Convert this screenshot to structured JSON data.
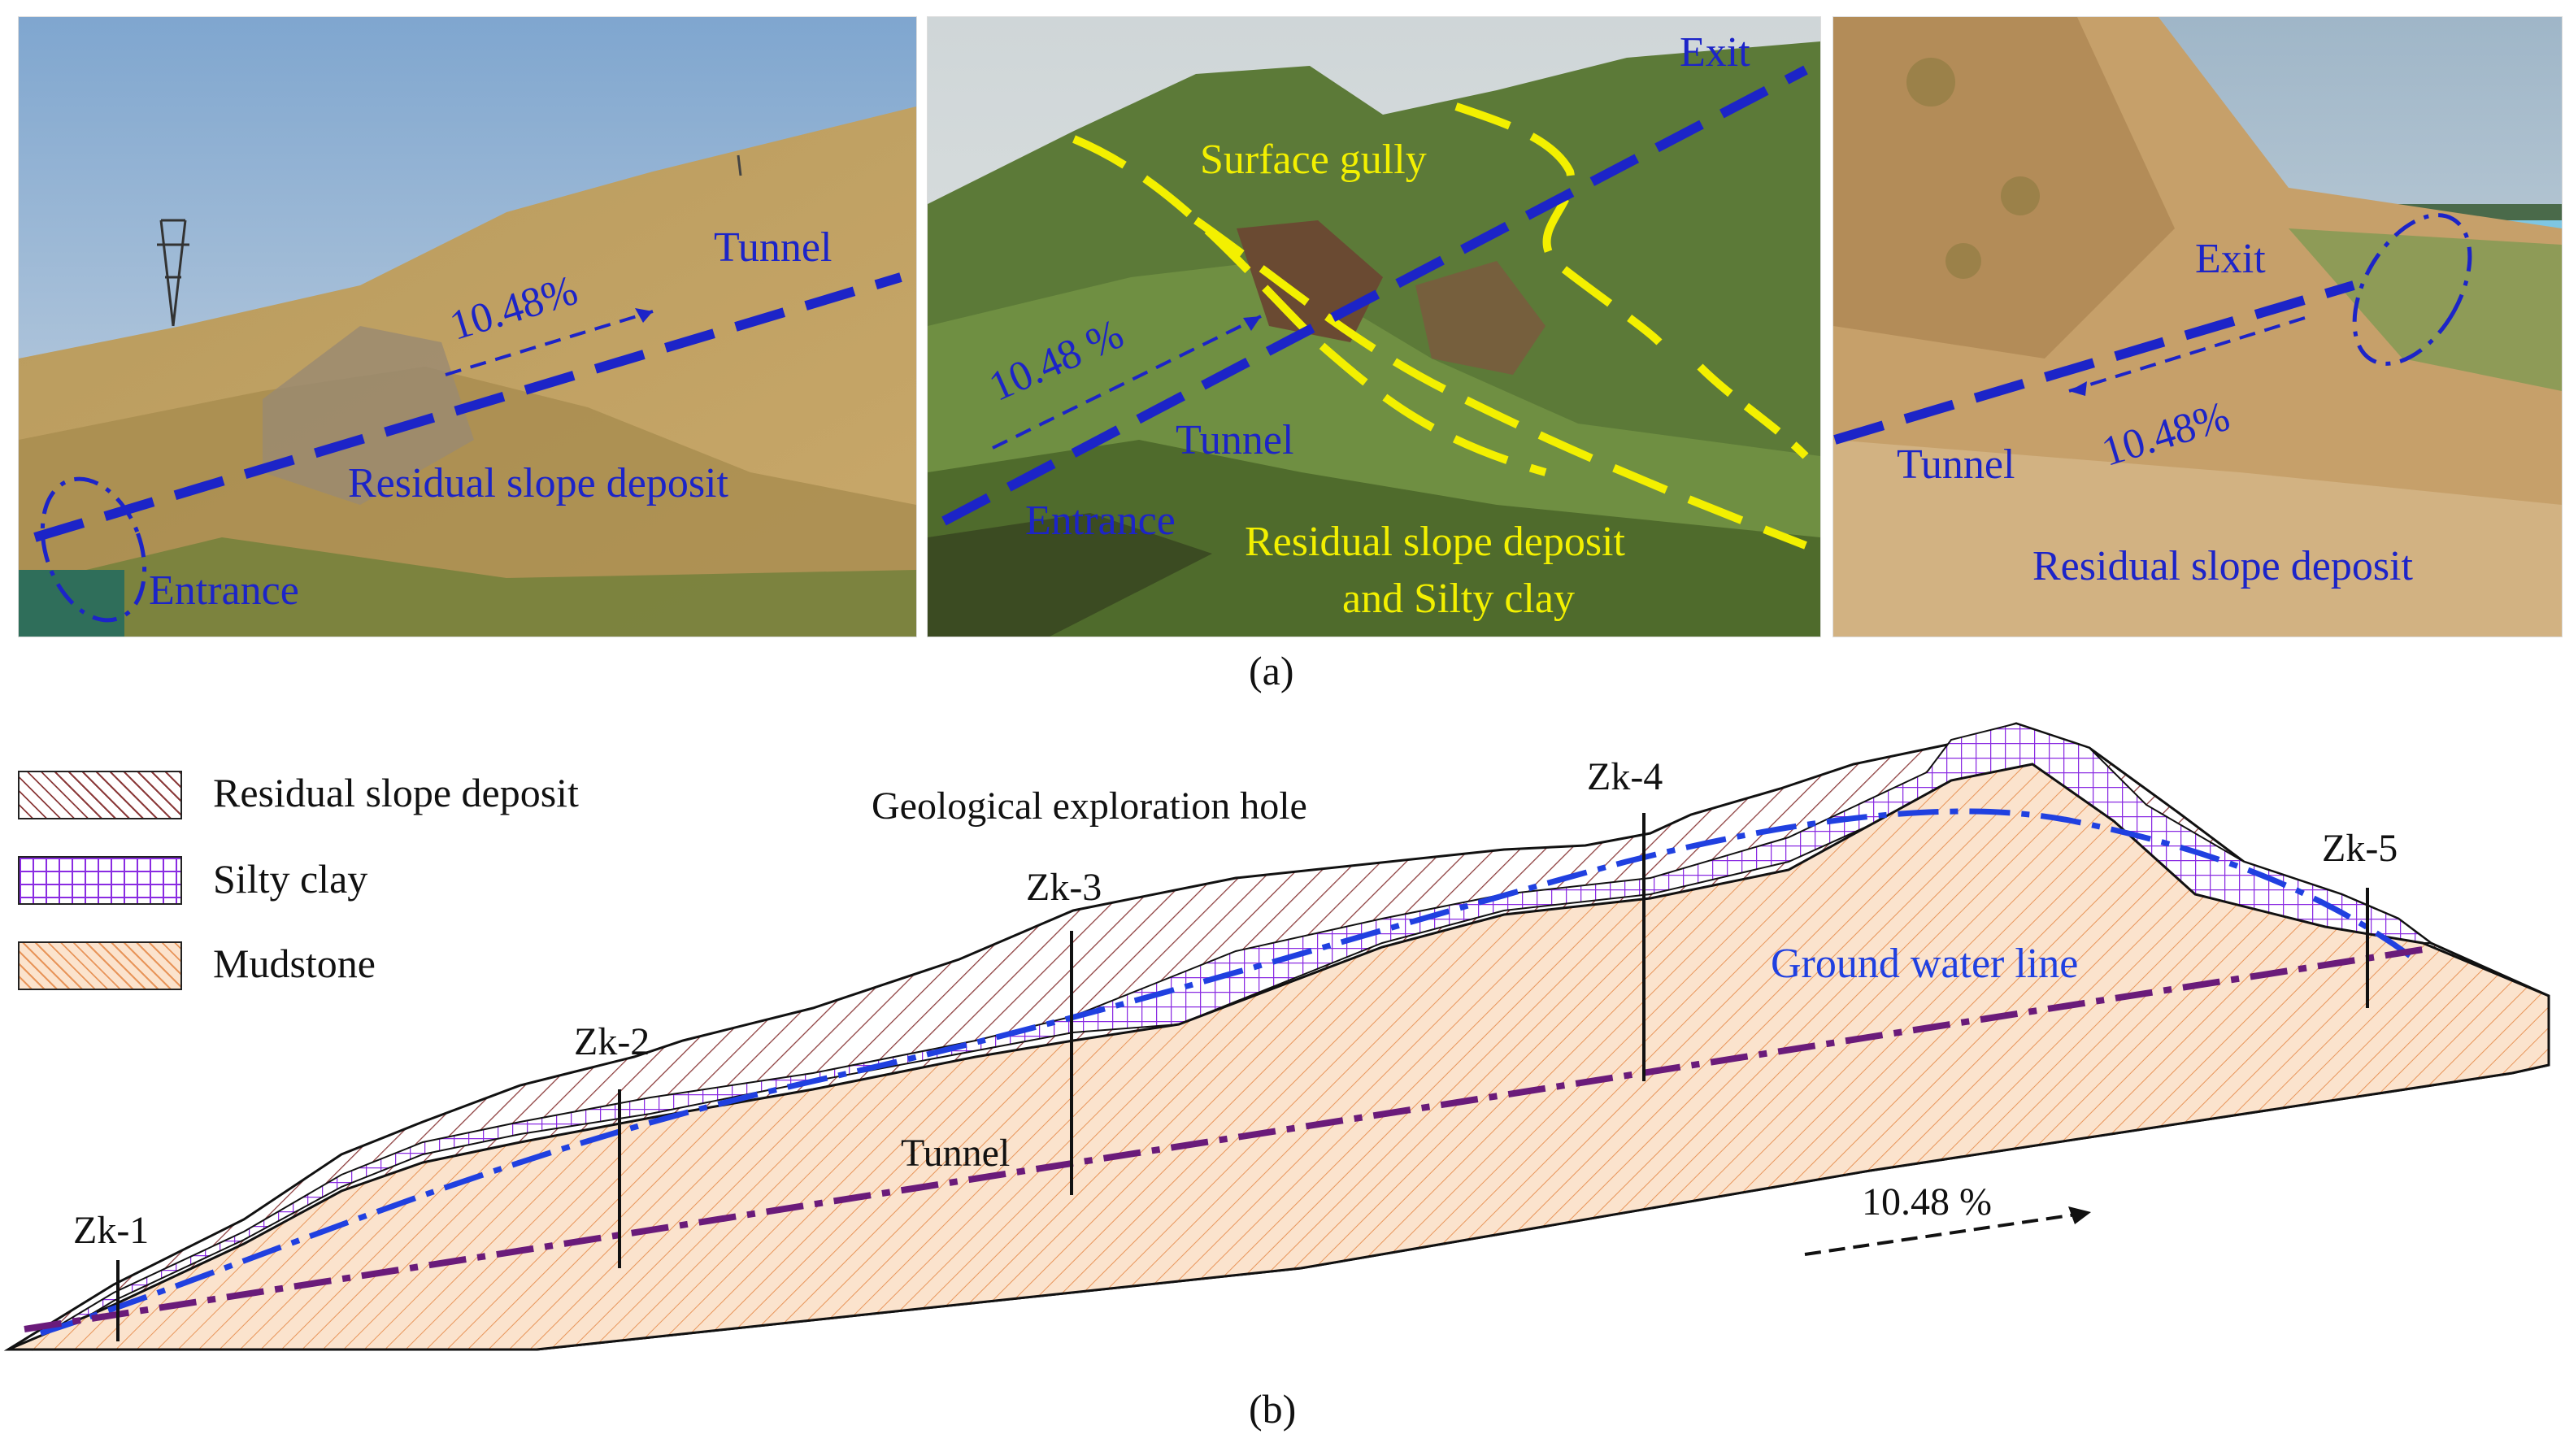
{
  "panel_a": {
    "caption": "(a)",
    "photo_left": {
      "tunnel": "Tunnel",
      "slope": "10.48%",
      "deposit": "Residual slope deposit",
      "entrance": "Entrance"
    },
    "photo_middle": {
      "exit": "Exit",
      "gully": "Surface gully",
      "slope": "10.48 %",
      "tunnel": "Tunnel",
      "entrance": "Entrance",
      "deposit_line1": "Residual slope deposit",
      "deposit_line2": "and Silty clay"
    },
    "photo_right": {
      "exit": "Exit",
      "tunnel": "Tunnel",
      "slope": "10.48%",
      "deposit": "Residual slope deposit"
    }
  },
  "panel_b": {
    "caption": "(b)",
    "legend": [
      {
        "label": "Residual slope deposit",
        "pattern": "hatch-brown"
      },
      {
        "label": "Silty clay",
        "pattern": "grid-purple"
      },
      {
        "label": "Mudstone",
        "pattern": "hatch-orange"
      }
    ],
    "exploration_label": "Geological exploration hole",
    "boreholes": [
      "Zk-1",
      "Zk-2",
      "Zk-3",
      "Zk-4",
      "Zk-5"
    ],
    "groundwater_label": "Ground water line",
    "tunnel_label": "Tunnel",
    "slope_label": "10.48 %"
  },
  "colors": {
    "tunnel_blue": "#1c24c8",
    "gully_yellow": "#f3f000",
    "deposit_hatch": "#8b3a3a",
    "silty_clay": "#8a2be2",
    "mudstone_fill": "#fbe3cd",
    "mudstone_hatch": "#e8955a",
    "groundwater_line": "#2040e0",
    "tunnel_line": "#6a1b7a"
  }
}
